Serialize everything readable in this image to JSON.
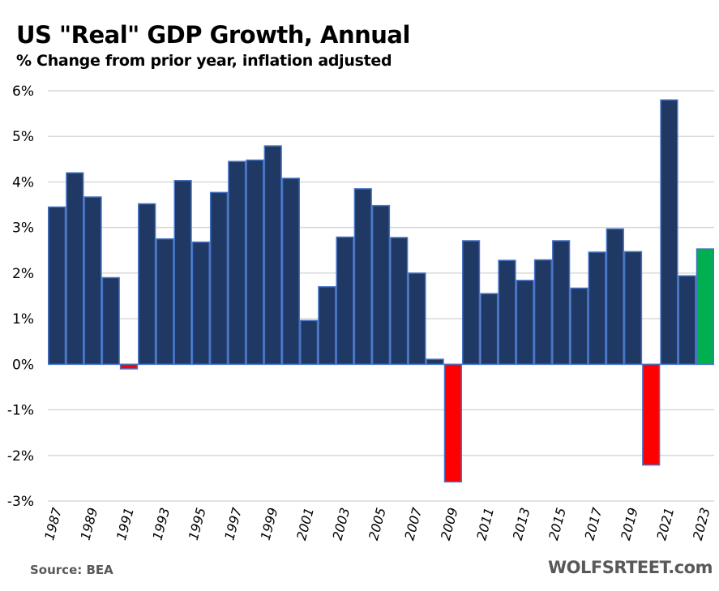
{
  "chart_data": {
    "type": "bar",
    "title": "US \"Real\" GDP Growth, Annual",
    "subtitle": "% Change from prior year, inflation adjusted",
    "xlabel": "",
    "ylabel": "",
    "ylim": [
      -3,
      6
    ],
    "yticks": [
      6,
      5,
      4,
      3,
      2,
      1,
      0,
      -1,
      -2,
      -3
    ],
    "ytick_labels": [
      "6%",
      "5%",
      "4%",
      "3%",
      "2%",
      "1%",
      "0%",
      "-1%",
      "-2%",
      "-3%"
    ],
    "grid": true,
    "legend": "none",
    "categories": [
      "1987",
      "1988",
      "1989",
      "1990",
      "1991",
      "1992",
      "1993",
      "1994",
      "1995",
      "1996",
      "1997",
      "1998",
      "1999",
      "2000",
      "2001",
      "2002",
      "2003",
      "2004",
      "2005",
      "2006",
      "2007",
      "2008",
      "2009",
      "2010",
      "2011",
      "2012",
      "2013",
      "2014",
      "2015",
      "2016",
      "2017",
      "2018",
      "2019",
      "2020",
      "2021",
      "2022",
      "2023"
    ],
    "xtick_labels": [
      "1987",
      "1989",
      "1991",
      "1993",
      "1995",
      "1997",
      "1999",
      "2001",
      "2003",
      "2005",
      "2007",
      "2009",
      "2011",
      "2013",
      "2015",
      "2017",
      "2019",
      "2021",
      "2023"
    ],
    "values": [
      3.45,
      4.2,
      3.67,
      1.9,
      -0.1,
      3.52,
      2.75,
      4.03,
      2.68,
      3.77,
      4.45,
      4.48,
      4.79,
      4.08,
      0.96,
      1.7,
      2.79,
      3.85,
      3.48,
      2.78,
      2.0,
      0.11,
      -2.58,
      2.71,
      1.55,
      2.28,
      1.84,
      2.29,
      2.71,
      1.67,
      2.46,
      2.97,
      2.47,
      -2.21,
      5.8,
      1.94,
      2.53
    ],
    "colors": {
      "positive": "#203864",
      "negative": "#ff0000",
      "latest": "#00b050",
      "bar_border": "#4472c4",
      "grid": "#d9d9d9"
    }
  },
  "footer": {
    "source": "Source: BEA",
    "brand": "WOLFSRTEET.com"
  }
}
